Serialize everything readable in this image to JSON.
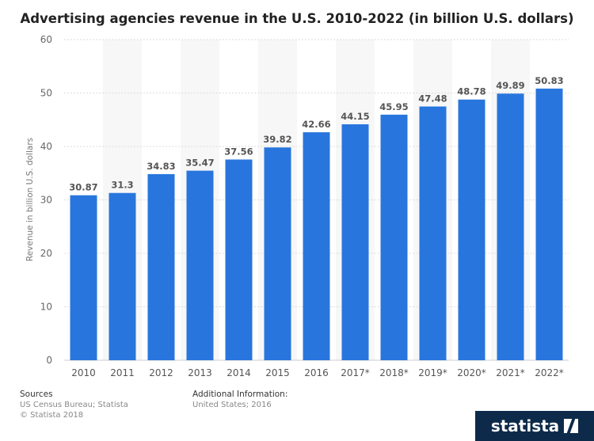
{
  "chart_data": {
    "type": "bar",
    "title": "Advertising agencies revenue in the U.S. 2010-2022 (in billion U.S. dollars)",
    "xlabel": "",
    "ylabel": "Revenue in billion U.S. dollars",
    "ylim": [
      0,
      60
    ],
    "yticks": [
      0,
      10,
      20,
      30,
      40,
      50,
      60
    ],
    "categories": [
      "2010",
      "2011",
      "2012",
      "2013",
      "2014",
      "2015",
      "2016",
      "2017*",
      "2018*",
      "2019*",
      "2020*",
      "2021*",
      "2022*"
    ],
    "values": [
      30.87,
      31.3,
      34.83,
      35.47,
      37.56,
      39.82,
      42.66,
      44.15,
      45.95,
      47.48,
      48.78,
      49.89,
      50.83
    ],
    "value_labels": [
      "30.87",
      "31.3",
      "34.83",
      "35.47",
      "37.56",
      "39.82",
      "42.66",
      "44.15",
      "45.95",
      "47.48",
      "48.78",
      "49.89",
      "50.83"
    ],
    "grid": true,
    "bar_color": "#2876dd"
  },
  "footer": {
    "sources_heading": "Sources",
    "sources_line1": "US Census Bureau; Statista",
    "sources_line2": "© Statista 2018",
    "info_heading": "Additional Information:",
    "info_line1": "United States; 2016"
  },
  "brand": {
    "name": "statista",
    "color": "#0d2a4a"
  }
}
